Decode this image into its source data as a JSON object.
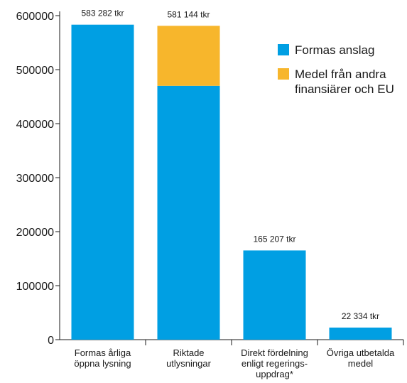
{
  "chart_data": {
    "type": "bar",
    "stacked": true,
    "categories": [
      [
        "Formas årliga",
        "öppna lysning"
      ],
      [
        "Riktade",
        "utlysningar"
      ],
      [
        "Direkt fördelning",
        "enligt regerings-",
        "uppdrag*"
      ],
      [
        "Övriga utbetalda",
        "medel"
      ]
    ],
    "series": [
      {
        "name": [
          "Formas anslag"
        ],
        "color": "#009fe3",
        "values": [
          583282,
          470000,
          165207,
          22334
        ]
      },
      {
        "name": [
          "Medel från andra",
          "finansiärer och EU"
        ],
        "color": "#f7b62c",
        "values": [
          0,
          111144,
          0,
          0
        ]
      }
    ],
    "totals": [
      583282,
      581144,
      165207,
      22334
    ],
    "data_labels": [
      "583 282 tkr",
      "581 144 tkr",
      "165 207 tkr",
      "22 334 tkr"
    ],
    "y_ticks": [
      0,
      100000,
      200000,
      300000,
      400000,
      500000,
      600000
    ],
    "y_tick_labels": [
      "0",
      "100000",
      "200000",
      "300000",
      "400000",
      "500000",
      "600000"
    ],
    "ylim": [
      0,
      600000
    ],
    "title": "",
    "xlabel": "",
    "ylabel": "",
    "grid": false,
    "legend_position": "top-right"
  }
}
